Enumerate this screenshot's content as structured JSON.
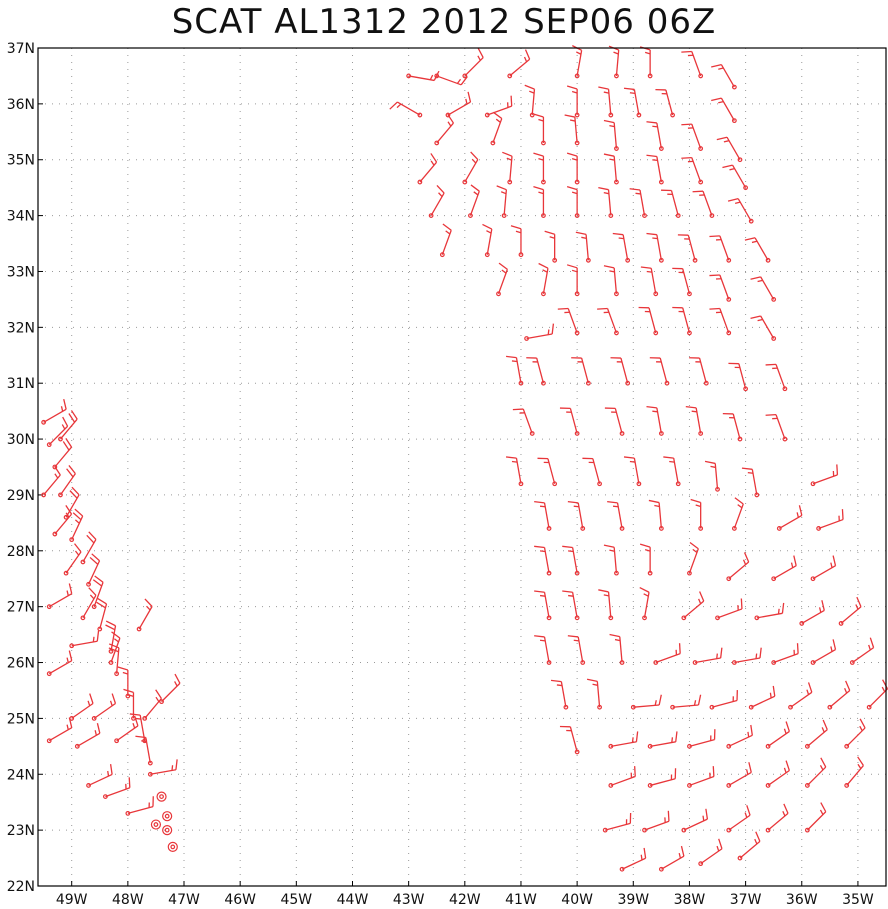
{
  "chart_data": {
    "type": "scatter",
    "title": "SCAT AL1312 2012 SEP06 06Z",
    "xlabel": "",
    "ylabel": "",
    "xlim": [
      -49.6,
      -34.5
    ],
    "ylim": [
      22,
      37
    ],
    "x_ticks": [
      "49W",
      "48W",
      "47W",
      "46W",
      "45W",
      "44W",
      "43W",
      "42W",
      "41W",
      "40W",
      "39W",
      "38W",
      "37W",
      "36W",
      "35W"
    ],
    "y_ticks": [
      "22N",
      "23N",
      "24N",
      "25N",
      "26N",
      "27N",
      "28N",
      "29N",
      "30N",
      "31N",
      "32N",
      "33N",
      "34N",
      "35N",
      "36N",
      "37N"
    ],
    "grid": true,
    "barb_color": "#e8363a",
    "west_swath": [
      [
        -49.5,
        30.3,
        60,
        15
      ],
      [
        -49.4,
        29.9,
        45,
        15
      ],
      [
        -49.3,
        29.5,
        40,
        20
      ],
      [
        -49.2,
        29.0,
        35,
        20
      ],
      [
        -49.1,
        28.6,
        30,
        20
      ],
      [
        -49.0,
        28.2,
        25,
        25
      ],
      [
        -48.8,
        27.8,
        30,
        20
      ],
      [
        -48.7,
        27.4,
        25,
        20
      ],
      [
        -48.6,
        27.0,
        20,
        20
      ],
      [
        -48.5,
        26.6,
        15,
        20
      ],
      [
        -48.3,
        26.2,
        10,
        20
      ],
      [
        -48.2,
        25.8,
        5,
        20
      ],
      [
        -48.0,
        25.4,
        0,
        15
      ],
      [
        -47.9,
        25.0,
        0,
        15
      ],
      [
        -47.7,
        24.6,
        350,
        15
      ],
      [
        -47.6,
        24.2,
        350,
        15
      ],
      [
        -49.4,
        27.0,
        60,
        15
      ],
      [
        -49.0,
        26.3,
        80,
        15
      ],
      [
        -49.4,
        25.8,
        60,
        15
      ],
      [
        -49.0,
        25.0,
        55,
        15
      ],
      [
        -49.4,
        24.6,
        60,
        15
      ],
      [
        -48.9,
        24.5,
        60,
        15
      ],
      [
        -48.6,
        25.0,
        55,
        15
      ],
      [
        -48.2,
        24.6,
        55,
        15
      ],
      [
        -48.7,
        23.8,
        65,
        15
      ],
      [
        -48.4,
        23.6,
        70,
        15
      ],
      [
        -48.0,
        23.3,
        75,
        15
      ],
      [
        -47.6,
        24.0,
        80,
        15
      ],
      [
        -47.4,
        25.3,
        45,
        15
      ],
      [
        -47.7,
        25.0,
        40,
        15
      ],
      [
        -48.3,
        26.0,
        20,
        15
      ],
      [
        -48.8,
        26.8,
        30,
        15
      ],
      [
        -49.1,
        27.6,
        35,
        15
      ],
      [
        -49.3,
        28.3,
        40,
        15
      ],
      [
        -49.5,
        29.0,
        40,
        15
      ],
      [
        -49.2,
        30.0,
        40,
        20
      ],
      [
        -47.8,
        26.6,
        30,
        15
      ]
    ],
    "calm_points": [
      [
        -47.4,
        23.6
      ],
      [
        -47.3,
        23.25
      ],
      [
        -47.5,
        23.1
      ],
      [
        -47.3,
        23.0
      ],
      [
        -47.2,
        22.7
      ]
    ],
    "east_swath": [
      [
        -43.0,
        36.5,
        100,
        15
      ],
      [
        -42.5,
        36.5,
        110,
        15
      ],
      [
        -42.0,
        36.5,
        45,
        15
      ],
      [
        -41.2,
        36.5,
        50,
        15
      ],
      [
        -40.0,
        36.5,
        10,
        15
      ],
      [
        -39.3,
        36.5,
        5,
        15
      ],
      [
        -38.7,
        36.5,
        0,
        15
      ],
      [
        -37.8,
        36.5,
        340,
        15
      ],
      [
        -37.2,
        36.3,
        330,
        15
      ],
      [
        -42.8,
        35.8,
        300,
        15
      ],
      [
        -42.3,
        35.8,
        60,
        15
      ],
      [
        -41.6,
        35.8,
        70,
        15
      ],
      [
        -40.8,
        35.8,
        5,
        15
      ],
      [
        -40.0,
        35.8,
        0,
        15
      ],
      [
        -39.4,
        35.8,
        355,
        15
      ],
      [
        -38.9,
        35.8,
        350,
        15
      ],
      [
        -38.3,
        35.8,
        345,
        15
      ],
      [
        -37.2,
        35.7,
        330,
        15
      ],
      [
        -42.5,
        35.3,
        40,
        15
      ],
      [
        -41.5,
        35.3,
        20,
        15
      ],
      [
        -40.6,
        35.3,
        0,
        15
      ],
      [
        -40.0,
        35.3,
        355,
        15
      ],
      [
        -39.3,
        35.2,
        355,
        15
      ],
      [
        -38.5,
        35.2,
        350,
        15
      ],
      [
        -37.8,
        35.2,
        340,
        15
      ],
      [
        -37.1,
        35.0,
        330,
        15
      ],
      [
        -42.8,
        34.6,
        40,
        15
      ],
      [
        -42.0,
        34.6,
        30,
        15
      ],
      [
        -41.2,
        34.6,
        5,
        15
      ],
      [
        -40.6,
        34.6,
        0,
        15
      ],
      [
        -40.0,
        34.6,
        0,
        15
      ],
      [
        -39.3,
        34.6,
        355,
        15
      ],
      [
        -38.5,
        34.6,
        350,
        15
      ],
      [
        -37.8,
        34.6,
        340,
        15
      ],
      [
        -37.0,
        34.5,
        330,
        15
      ],
      [
        -42.6,
        34.0,
        30,
        15
      ],
      [
        -41.9,
        34.0,
        20,
        15
      ],
      [
        -41.3,
        34.0,
        5,
        15
      ],
      [
        -40.6,
        34.0,
        0,
        15
      ],
      [
        -40.0,
        34.0,
        0,
        15
      ],
      [
        -39.4,
        34.0,
        355,
        15
      ],
      [
        -38.8,
        34.0,
        350,
        15
      ],
      [
        -38.2,
        34.0,
        345,
        15
      ],
      [
        -37.6,
        34.0,
        340,
        15
      ],
      [
        -36.9,
        33.9,
        330,
        15
      ],
      [
        -42.4,
        33.3,
        20,
        15
      ],
      [
        -41.6,
        33.3,
        10,
        15
      ],
      [
        -41.0,
        33.3,
        0,
        15
      ],
      [
        -40.4,
        33.2,
        0,
        15
      ],
      [
        -39.8,
        33.2,
        355,
        15
      ],
      [
        -39.1,
        33.2,
        350,
        15
      ],
      [
        -38.5,
        33.2,
        350,
        15
      ],
      [
        -37.9,
        33.2,
        345,
        15
      ],
      [
        -37.3,
        33.2,
        340,
        15
      ],
      [
        -36.6,
        33.2,
        330,
        15
      ],
      [
        -41.4,
        32.6,
        20,
        15
      ],
      [
        -40.6,
        32.6,
        10,
        15
      ],
      [
        -40.0,
        32.6,
        0,
        15
      ],
      [
        -39.3,
        32.6,
        355,
        15
      ],
      [
        -38.6,
        32.6,
        350,
        15
      ],
      [
        -38.0,
        32.6,
        345,
        15
      ],
      [
        -37.3,
        32.5,
        340,
        15
      ],
      [
        -36.5,
        32.5,
        330,
        15
      ],
      [
        -40.9,
        31.8,
        80,
        15
      ],
      [
        -40.0,
        31.9,
        340,
        15
      ],
      [
        -39.3,
        31.9,
        340,
        15
      ],
      [
        -38.6,
        31.9,
        345,
        15
      ],
      [
        -38.0,
        31.9,
        345,
        15
      ],
      [
        -37.3,
        31.9,
        340,
        15
      ],
      [
        -36.5,
        31.8,
        330,
        15
      ],
      [
        -41.0,
        31.0,
        350,
        15
      ],
      [
        -40.6,
        31.0,
        345,
        15
      ],
      [
        -39.8,
        31.0,
        345,
        15
      ],
      [
        -39.1,
        31.0,
        345,
        15
      ],
      [
        -38.4,
        31.0,
        345,
        15
      ],
      [
        -37.7,
        31.0,
        345,
        15
      ],
      [
        -37.0,
        30.9,
        345,
        15
      ],
      [
        -36.3,
        30.9,
        340,
        15
      ],
      [
        -40.8,
        30.1,
        340,
        15
      ],
      [
        -40.0,
        30.1,
        345,
        15
      ],
      [
        -39.2,
        30.1,
        345,
        15
      ],
      [
        -38.5,
        30.1,
        350,
        15
      ],
      [
        -37.8,
        30.1,
        350,
        15
      ],
      [
        -37.1,
        30.0,
        345,
        15
      ],
      [
        -36.3,
        30.0,
        340,
        15
      ],
      [
        -41.0,
        29.2,
        350,
        15
      ],
      [
        -40.4,
        29.2,
        345,
        15
      ],
      [
        -39.6,
        29.2,
        345,
        15
      ],
      [
        -38.9,
        29.2,
        350,
        15
      ],
      [
        -38.2,
        29.2,
        350,
        15
      ],
      [
        -37.5,
        29.1,
        355,
        15
      ],
      [
        -36.8,
        29.0,
        350,
        15
      ],
      [
        -35.8,
        29.2,
        70,
        15
      ],
      [
        -40.5,
        28.4,
        350,
        15
      ],
      [
        -39.9,
        28.4,
        350,
        15
      ],
      [
        -39.2,
        28.4,
        350,
        15
      ],
      [
        -38.5,
        28.4,
        355,
        15
      ],
      [
        -37.8,
        28.4,
        0,
        15
      ],
      [
        -37.2,
        28.4,
        20,
        15
      ],
      [
        -36.4,
        28.4,
        60,
        15
      ],
      [
        -35.7,
        28.4,
        70,
        15
      ],
      [
        -40.5,
        27.6,
        350,
        15
      ],
      [
        -40.0,
        27.6,
        350,
        15
      ],
      [
        -39.3,
        27.6,
        355,
        15
      ],
      [
        -38.7,
        27.6,
        0,
        15
      ],
      [
        -38.0,
        27.6,
        20,
        15
      ],
      [
        -37.3,
        27.5,
        50,
        15
      ],
      [
        -36.5,
        27.5,
        60,
        15
      ],
      [
        -35.8,
        27.5,
        60,
        15
      ],
      [
        -40.5,
        26.8,
        350,
        15
      ],
      [
        -40.0,
        26.8,
        350,
        15
      ],
      [
        -39.4,
        26.8,
        355,
        15
      ],
      [
        -38.8,
        26.8,
        10,
        15
      ],
      [
        -38.1,
        26.8,
        50,
        15
      ],
      [
        -37.5,
        26.8,
        70,
        15
      ],
      [
        -36.8,
        26.8,
        80,
        15
      ],
      [
        -36.0,
        26.7,
        60,
        15
      ],
      [
        -35.3,
        26.7,
        50,
        15
      ],
      [
        -40.5,
        26.0,
        350,
        15
      ],
      [
        -39.9,
        26.0,
        350,
        15
      ],
      [
        -39.2,
        26.0,
        355,
        15
      ],
      [
        -38.6,
        26.0,
        70,
        15
      ],
      [
        -37.9,
        26.0,
        80,
        15
      ],
      [
        -37.2,
        26.0,
        80,
        15
      ],
      [
        -36.5,
        26.0,
        70,
        15
      ],
      [
        -35.8,
        26.0,
        60,
        15
      ],
      [
        -35.1,
        26.0,
        55,
        15
      ],
      [
        -40.2,
        25.2,
        350,
        15
      ],
      [
        -39.6,
        25.2,
        355,
        15
      ],
      [
        -39.0,
        25.2,
        85,
        15
      ],
      [
        -38.3,
        25.2,
        85,
        15
      ],
      [
        -37.6,
        25.2,
        75,
        15
      ],
      [
        -36.9,
        25.2,
        65,
        15
      ],
      [
        -36.2,
        25.2,
        55,
        15
      ],
      [
        -35.5,
        25.2,
        50,
        15
      ],
      [
        -34.8,
        25.2,
        45,
        15
      ],
      [
        -40.0,
        24.4,
        345,
        15
      ],
      [
        -39.4,
        24.5,
        80,
        15
      ],
      [
        -38.7,
        24.5,
        80,
        15
      ],
      [
        -38.0,
        24.5,
        75,
        15
      ],
      [
        -37.3,
        24.5,
        65,
        15
      ],
      [
        -36.6,
        24.5,
        55,
        15
      ],
      [
        -35.9,
        24.5,
        50,
        15
      ],
      [
        -35.2,
        24.5,
        45,
        15
      ],
      [
        -39.4,
        23.8,
        70,
        15
      ],
      [
        -38.7,
        23.8,
        75,
        15
      ],
      [
        -38.0,
        23.8,
        70,
        15
      ],
      [
        -37.3,
        23.8,
        60,
        15
      ],
      [
        -36.6,
        23.8,
        55,
        15
      ],
      [
        -35.9,
        23.8,
        45,
        15
      ],
      [
        -35.2,
        23.8,
        40,
        15
      ],
      [
        -39.5,
        23.0,
        75,
        15
      ],
      [
        -38.8,
        23.0,
        70,
        15
      ],
      [
        -38.1,
        23.0,
        65,
        15
      ],
      [
        -37.3,
        23.0,
        55,
        15
      ],
      [
        -36.6,
        23.0,
        50,
        15
      ],
      [
        -35.9,
        23.0,
        45,
        15
      ],
      [
        -39.2,
        22.3,
        65,
        15
      ],
      [
        -38.5,
        22.3,
        60,
        15
      ],
      [
        -37.8,
        22.4,
        55,
        15
      ],
      [
        -37.1,
        22.5,
        50,
        15
      ]
    ]
  }
}
